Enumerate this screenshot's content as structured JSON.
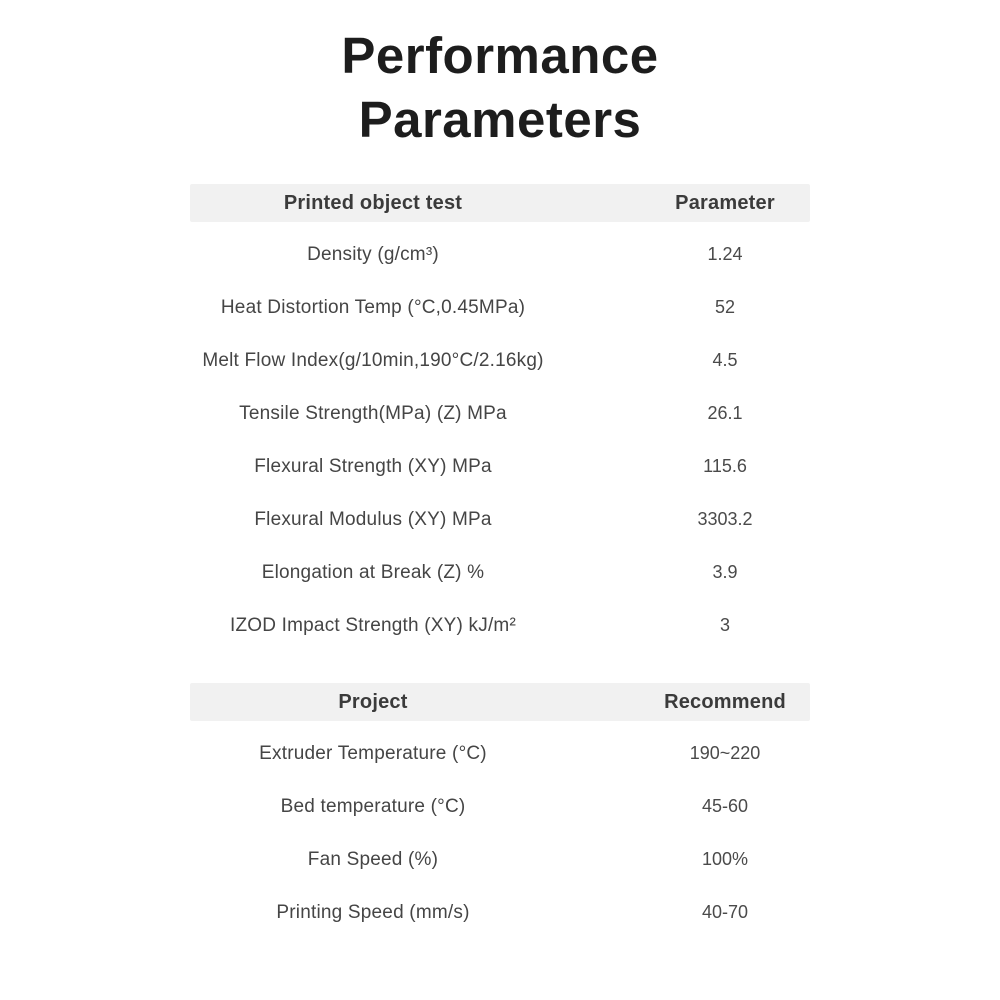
{
  "title": {
    "line1": "Performance",
    "line2": "Parameters"
  },
  "colors": {
    "page_background": "#ffffff",
    "header_background": "#f1f1f1",
    "header_text": "#3b3b3b",
    "row_text": "#454545",
    "title_text": "#1d1d1d"
  },
  "tables": [
    {
      "header": {
        "label": "Printed object test",
        "value": "Parameter"
      },
      "rows": [
        {
          "label": "Density (g/cm³)",
          "value": "1.24"
        },
        {
          "label": "Heat Distortion Temp (°C,0.45MPa)",
          "value": "52"
        },
        {
          "label": "Melt Flow Index(g/10min,190°C/2.16kg)",
          "value": "4.5"
        },
        {
          "label": "Tensile Strength(MPa) (Z) MPa",
          "value": "26.1"
        },
        {
          "label": "Flexural Strength (XY) MPa",
          "value": "115.6"
        },
        {
          "label": "Flexural Modulus (XY) MPa",
          "value": "3303.2"
        },
        {
          "label": "Elongation at Break (Z) %",
          "value": "3.9"
        },
        {
          "label": "IZOD Impact Strength (XY) kJ/m²",
          "value": "3"
        }
      ]
    },
    {
      "header": {
        "label": "Project",
        "value": "Recommend"
      },
      "rows": [
        {
          "label": "Extruder Temperature (°C)",
          "value": "190~220"
        },
        {
          "label": "Bed temperature (°C)",
          "value": "45-60"
        },
        {
          "label": "Fan Speed (%)",
          "value": "100%"
        },
        {
          "label": "Printing Speed (mm/s)",
          "value": "40-70"
        }
      ]
    }
  ]
}
